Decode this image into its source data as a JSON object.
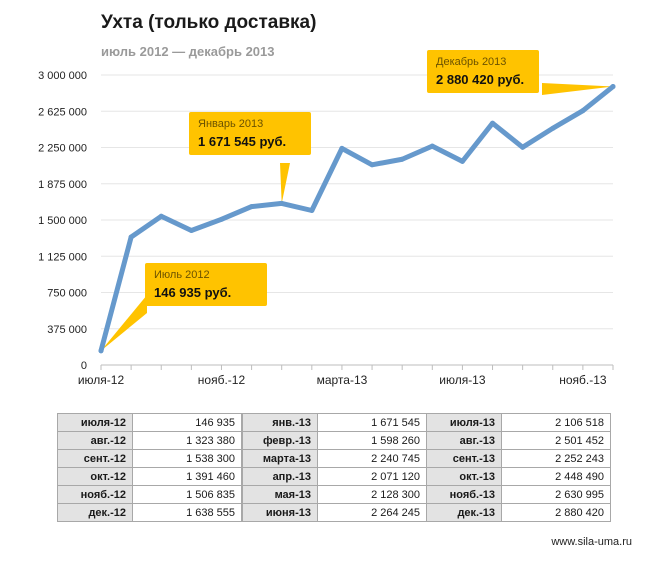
{
  "title": "Ухта (только доставка)",
  "subtitle": "июль 2012 — декабрь 2013",
  "site": "www.sila-uma.ru",
  "colors": {
    "line": "#6699cc",
    "callout": "#ffc300",
    "grid": "#e6e6e6"
  },
  "chart_data": {
    "type": "line",
    "title": "Ухта (только доставка)",
    "subtitle": "июль 2012 — декабрь 2013",
    "ylim": [
      0,
      3000000
    ],
    "yticks": [
      "0",
      "375 000",
      "750 000",
      "1 125 000",
      "1 500 000",
      "1 875 000",
      "2 250 000",
      "2 625 000",
      "3 000 000"
    ],
    "ytick_values": [
      0,
      375000,
      750000,
      1125000,
      1500000,
      1875000,
      2250000,
      2625000,
      3000000
    ],
    "xtick_labels": [
      "июля-12",
      "нояб.-12",
      "марта-13",
      "июля-13",
      "нояб.-13"
    ],
    "xtick_indices": [
      0,
      4,
      8,
      12,
      16
    ],
    "grid": true,
    "categories": [
      "июля-12",
      "авг.-12",
      "сент.-12",
      "окт.-12",
      "нояб.-12",
      "дек.-12",
      "янв.-13",
      "февр.-13",
      "марта-13",
      "апр.-13",
      "мая-13",
      "июня-13",
      "июля-13",
      "авг.-13",
      "сент.-13",
      "окт.-13",
      "нояб.-13",
      "дек.-13"
    ],
    "values": [
      146935,
      1323380,
      1538300,
      1391460,
      1506835,
      1638555,
      1671545,
      1598260,
      2240745,
      2071120,
      2128300,
      2264245,
      2106518,
      2501452,
      2252243,
      2448490,
      2630995,
      2880420
    ],
    "annotations": [
      {
        "period": "Июль 2012",
        "amount": "146 935 руб.",
        "index": 0
      },
      {
        "period": "Январь 2013",
        "amount": "1 671 545 руб.",
        "index": 6
      },
      {
        "period": "Декабрь 2013",
        "amount": "2 880 420 руб.",
        "index": 17
      }
    ]
  },
  "tables": [
    [
      {
        "month": "июля-12",
        "value": "146 935"
      },
      {
        "month": "авг.-12",
        "value": "1 323 380"
      },
      {
        "month": "сент.-12",
        "value": "1 538 300"
      },
      {
        "month": "окт.-12",
        "value": "1 391 460"
      },
      {
        "month": "нояб.-12",
        "value": "1 506 835"
      },
      {
        "month": "дек.-12",
        "value": "1 638 555"
      }
    ],
    [
      {
        "month": "янв.-13",
        "value": "1 671 545"
      },
      {
        "month": "февр.-13",
        "value": "1 598 260"
      },
      {
        "month": "марта-13",
        "value": "2 240 745"
      },
      {
        "month": "апр.-13",
        "value": "2 071 120"
      },
      {
        "month": "мая-13",
        "value": "2 128 300"
      },
      {
        "month": "июня-13",
        "value": "2 264 245"
      }
    ],
    [
      {
        "month": "июля-13",
        "value": "2 106 518"
      },
      {
        "month": "авг.-13",
        "value": "2 501 452"
      },
      {
        "month": "сент.-13",
        "value": "2 252 243"
      },
      {
        "month": "окт.-13",
        "value": "2 448 490"
      },
      {
        "month": "нояб.-13",
        "value": "2 630 995"
      },
      {
        "month": "дек.-13",
        "value": "2 880 420"
      }
    ]
  ]
}
